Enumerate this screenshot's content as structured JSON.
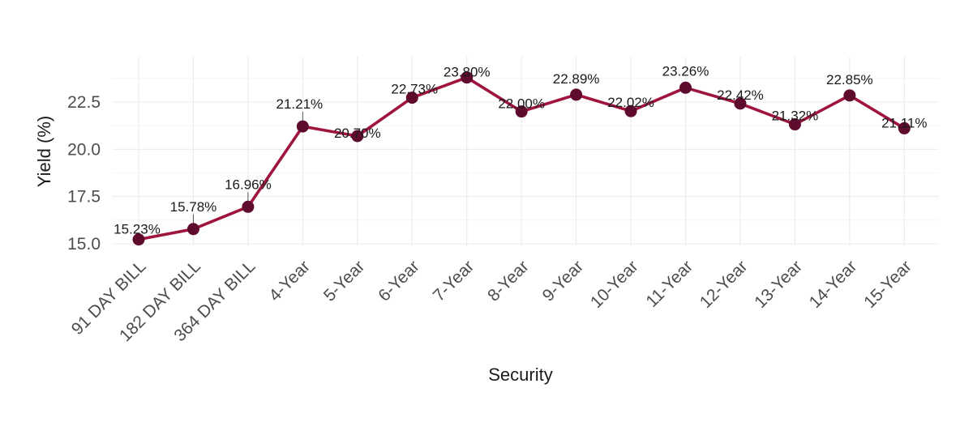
{
  "chart_data": {
    "type": "line",
    "title": "",
    "xlabel": "Security",
    "ylabel": "Yield (%)",
    "categories": [
      "91 DAY BILL",
      "182 DAY BILL",
      "364 DAY BILL",
      "4-Year",
      "5-Year",
      "6-Year",
      "7-Year",
      "8-Year",
      "9-Year",
      "10-Year",
      "11-Year",
      "12-Year",
      "13-Year",
      "14-Year",
      "15-Year"
    ],
    "series": [
      {
        "values": [
          15.23,
          15.78,
          16.96,
          21.21,
          20.7,
          22.73,
          23.8,
          22.0,
          22.89,
          22.02,
          23.26,
          22.42,
          21.32,
          22.85,
          21.11
        ],
        "labels": [
          "15.23%",
          "15.78%",
          "16.96%",
          "21.21%",
          "20.70%",
          "22.73%",
          "23.80%",
          "22.00%",
          "22.89%",
          "22.02%",
          "23.26%",
          "22.42%",
          "21.32%",
          "22.85%",
          "21.11%"
        ]
      }
    ],
    "ylim": [
      15.0,
      24.9
    ],
    "yticks": [
      15.0,
      17.5,
      20.0,
      22.5
    ],
    "ytick_labels": [
      "15.0",
      "17.5",
      "20.0",
      "22.5"
    ],
    "grid": true,
    "legend": "none",
    "colors": {
      "line": "#a0153e",
      "point": "#5e0b2e"
    }
  }
}
